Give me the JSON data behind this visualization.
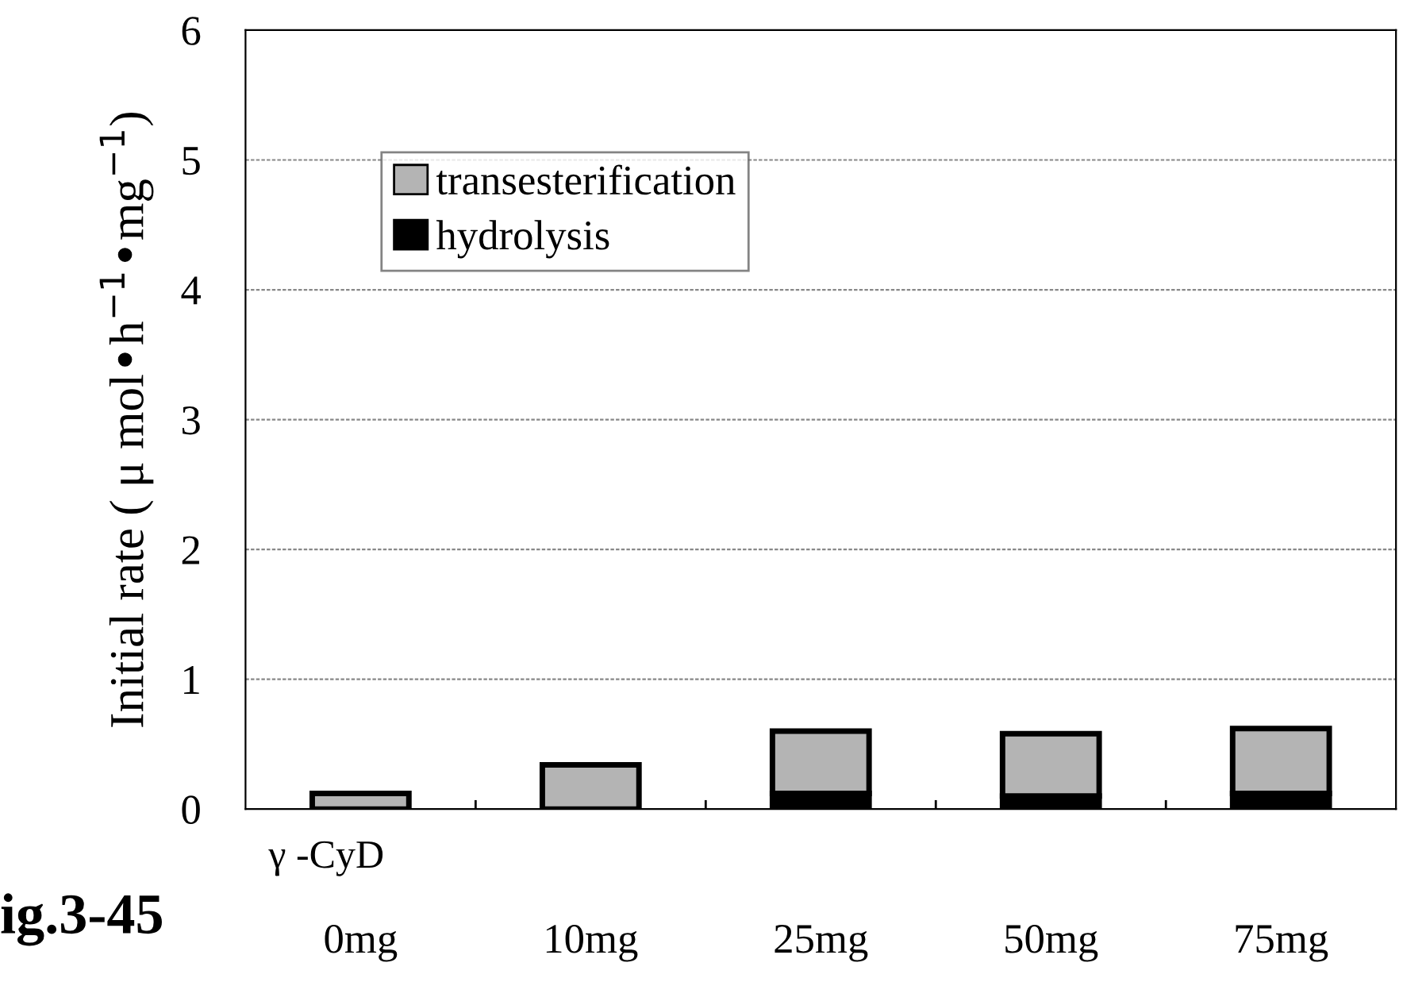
{
  "chart_data": {
    "type": "bar",
    "stacked": true,
    "categories": [
      "0mg",
      "10mg",
      "25mg",
      "50mg",
      "75mg"
    ],
    "series": [
      {
        "name": "hydrolysis",
        "color": "#000000",
        "values": [
          null,
          null,
          0.12,
          0.1,
          0.12
        ]
      },
      {
        "name": "transesterification",
        "color": "#b4b4b4",
        "values": [
          0.12,
          0.34,
          0.48,
          0.48,
          0.5
        ]
      }
    ],
    "xlabel": "γ -CyD",
    "ylabel": "Initial rate ( μ mol•h$^{−1}$•mg$^{−1}$)",
    "ylim": [
      0,
      6
    ],
    "yticks": [
      0,
      1,
      2,
      3,
      4,
      5,
      6
    ],
    "grid": "y",
    "legend": "top left",
    "annotations": [
      "ig.3-45"
    ]
  }
}
